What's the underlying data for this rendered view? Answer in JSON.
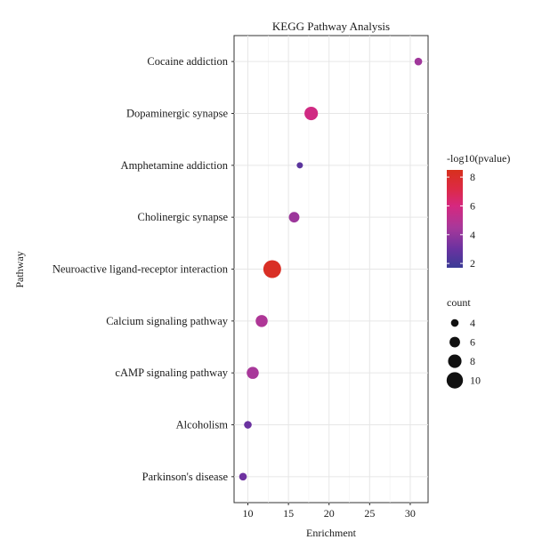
{
  "chart_data": {
    "type": "scatter",
    "title": "KEGG Pathway Analysis",
    "xlabel": "Enrichment",
    "ylabel": "Pathway",
    "xlim": [
      8.3,
      32.2
    ],
    "xticks": [
      10,
      15,
      20,
      25,
      30
    ],
    "grid": true,
    "categories": [
      "Cocaine addiction",
      "Dopaminergic synapse",
      "Amphetamine addiction",
      "Cholinergic synapse",
      "Neuroactive ligand-receptor interaction",
      "Calcium signaling pathway",
      "cAMP signaling pathway",
      "Alcoholism",
      "Parkinson's disease"
    ],
    "points": [
      {
        "pathway": "Cocaine addiction",
        "enrichment": 31.0,
        "count": 4,
        "neg_log10_pvalue": 4.3
      },
      {
        "pathway": "Dopaminergic synapse",
        "enrichment": 17.8,
        "count": 8,
        "neg_log10_pvalue": 5.8
      },
      {
        "pathway": "Amphetamine addiction",
        "enrichment": 16.4,
        "count": 3,
        "neg_log10_pvalue": 2.6
      },
      {
        "pathway": "Cholinergic synapse",
        "enrichment": 15.7,
        "count": 6,
        "neg_log10_pvalue": 4.2
      },
      {
        "pathway": "Neuroactive ligand-receptor interaction",
        "enrichment": 13.0,
        "count": 11,
        "neg_log10_pvalue": 8.2
      },
      {
        "pathway": "Calcium signaling pathway",
        "enrichment": 11.7,
        "count": 7,
        "neg_log10_pvalue": 4.7
      },
      {
        "pathway": "cAMP signaling pathway",
        "enrichment": 10.6,
        "count": 7,
        "neg_log10_pvalue": 4.5
      },
      {
        "pathway": "Alcoholism",
        "enrichment": 10.0,
        "count": 4,
        "neg_log10_pvalue": 3.0
      },
      {
        "pathway": "Parkinson's disease",
        "enrichment": 9.4,
        "count": 4,
        "neg_log10_pvalue": 3.1
      }
    ],
    "color_legend": {
      "title": "-log10(pvalue)",
      "ticks": [
        2,
        4,
        6,
        8
      ],
      "range": [
        1.7,
        8.5
      ],
      "stops": [
        {
          "value": 1.7,
          "color": "#3a3b96"
        },
        {
          "value": 3.0,
          "color": "#6a32a0"
        },
        {
          "value": 4.5,
          "color": "#a8389a"
        },
        {
          "value": 6.0,
          "color": "#d6287f"
        },
        {
          "value": 7.2,
          "color": "#dc2a45"
        },
        {
          "value": 8.5,
          "color": "#d8301c"
        }
      ]
    },
    "size_legend": {
      "title": "count",
      "values": [
        4,
        6,
        8,
        10
      ]
    },
    "size_range": {
      "count": [
        3,
        11
      ],
      "radius": [
        3.5,
        10
      ]
    }
  }
}
